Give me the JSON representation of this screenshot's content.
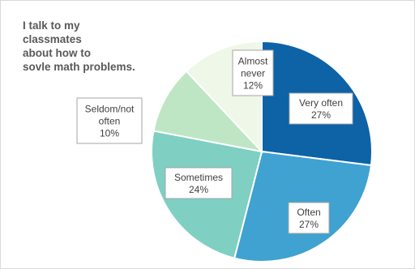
{
  "chart_data": {
    "type": "pie",
    "title_lines": [
      "I talk to my",
      "classmates",
      "about how to",
      "sovle math problems."
    ],
    "categories": [
      "Very often",
      "Often",
      "Sometimes",
      "Seldom/not often",
      "Almost never"
    ],
    "values": [
      27,
      27,
      24,
      10,
      12
    ],
    "value_labels": [
      "27%",
      "27%",
      "24%",
      "10%",
      "12%"
    ],
    "label_lines": [
      [
        "Very often",
        "27%"
      ],
      [
        "Often",
        "27%"
      ],
      [
        "Sometimes",
        "24%"
      ],
      [
        "Seldom/not",
        "often",
        "10%"
      ],
      [
        "Almost",
        "never",
        "12%"
      ]
    ],
    "colors": [
      "#0e62a6",
      "#3fa2d0",
      "#7fcfc3",
      "#bfe6c4",
      "#eef7e8"
    ],
    "start_angle_deg": 0,
    "direction": "clockwise",
    "legend": "none"
  }
}
